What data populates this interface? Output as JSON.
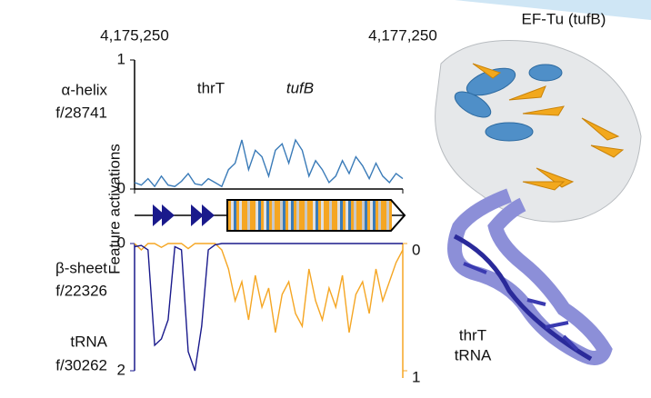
{
  "chart_data": [
    {
      "type": "line",
      "ylabel": "Feature activations",
      "x": [
        4175250,
        4175300,
        4175350,
        4175400,
        4175450,
        4175500,
        4175550,
        4175600,
        4175650,
        4175700,
        4175750,
        4175800,
        4175850,
        4175900,
        4175950,
        4176000,
        4176050,
        4176100,
        4176150,
        4176200,
        4176250,
        4176300,
        4176350,
        4176400,
        4176450,
        4176500,
        4176550,
        4176600,
        4176650,
        4176700,
        4176750,
        4176800,
        4176850,
        4176900,
        4176950,
        4177000,
        4177050,
        4177100,
        4177150,
        4177200,
        4177250
      ],
      "xlim": [
        4175250,
        4177250
      ],
      "xticks": [
        {
          "value": 4175250,
          "label": "4,175,250"
        },
        {
          "value": 4177250,
          "label": "4,177,250"
        }
      ],
      "ylim": [
        0,
        1
      ],
      "yticks": [
        0,
        1
      ],
      "annotations": [
        "thrT",
        "tufB"
      ],
      "series": [
        {
          "name": "α-helix",
          "feature": "f/28741",
          "color": "#3a7bb8",
          "values": [
            0.05,
            0.03,
            0.08,
            0.02,
            0.1,
            0.03,
            0.02,
            0.06,
            0.12,
            0.04,
            0.03,
            0.08,
            0.05,
            0.02,
            0.15,
            0.2,
            0.38,
            0.15,
            0.3,
            0.25,
            0.1,
            0.3,
            0.35,
            0.2,
            0.38,
            0.3,
            0.1,
            0.22,
            0.15,
            0.05,
            0.1,
            0.22,
            0.12,
            0.25,
            0.18,
            0.08,
            0.2,
            0.1,
            0.05,
            0.12,
            0.08
          ]
        }
      ]
    },
    {
      "type": "line",
      "inverted": true,
      "x": [
        4175250,
        4175300,
        4175350,
        4175400,
        4175450,
        4175500,
        4175550,
        4175600,
        4175650,
        4175700,
        4175750,
        4175800,
        4175850,
        4175900,
        4175950,
        4176000,
        4176050,
        4176100,
        4176150,
        4176200,
        4176250,
        4176300,
        4176350,
        4176400,
        4176450,
        4176500,
        4176550,
        4176600,
        4176650,
        4176700,
        4176750,
        4176800,
        4176850,
        4176900,
        4176950,
        4177000,
        4177050,
        4177100,
        4177150,
        4177200,
        4177250
      ],
      "xlim": [
        4175250,
        4177250
      ],
      "ylim": [
        0,
        2
      ],
      "yticks": [
        0,
        2
      ],
      "y2lim": [
        0,
        1
      ],
      "y2ticks": [
        0,
        1
      ],
      "series": [
        {
          "name": "β-sheet",
          "feature": "f/22326",
          "color": "#f5a623",
          "axis": "y2",
          "values": [
            0,
            0.05,
            0,
            0,
            0.03,
            0,
            0,
            0,
            0.04,
            0,
            0,
            0,
            0,
            0.05,
            0.2,
            0.45,
            0.3,
            0.6,
            0.25,
            0.5,
            0.35,
            0.7,
            0.4,
            0.3,
            0.55,
            0.65,
            0.2,
            0.45,
            0.6,
            0.35,
            0.5,
            0.25,
            0.7,
            0.4,
            0.3,
            0.55,
            0.2,
            0.45,
            0.3,
            0.15,
            0.05
          ]
        },
        {
          "name": "tRNA",
          "feature": "f/30262",
          "color": "#1a1a8c",
          "values": [
            0.05,
            0.03,
            0.1,
            1.6,
            1.5,
            1.2,
            0.05,
            0.1,
            1.7,
            2.0,
            1.3,
            0.1,
            0.02,
            0,
            0,
            0,
            0,
            0,
            0,
            0,
            0,
            0,
            0,
            0,
            0,
            0,
            0,
            0,
            0,
            0,
            0,
            0,
            0,
            0,
            0,
            0,
            0,
            0,
            0,
            0,
            0
          ]
        }
      ]
    }
  ],
  "structure": {
    "title": "EF-Tu (tufB)",
    "label": [
      "thrT",
      "tRNA"
    ]
  }
}
